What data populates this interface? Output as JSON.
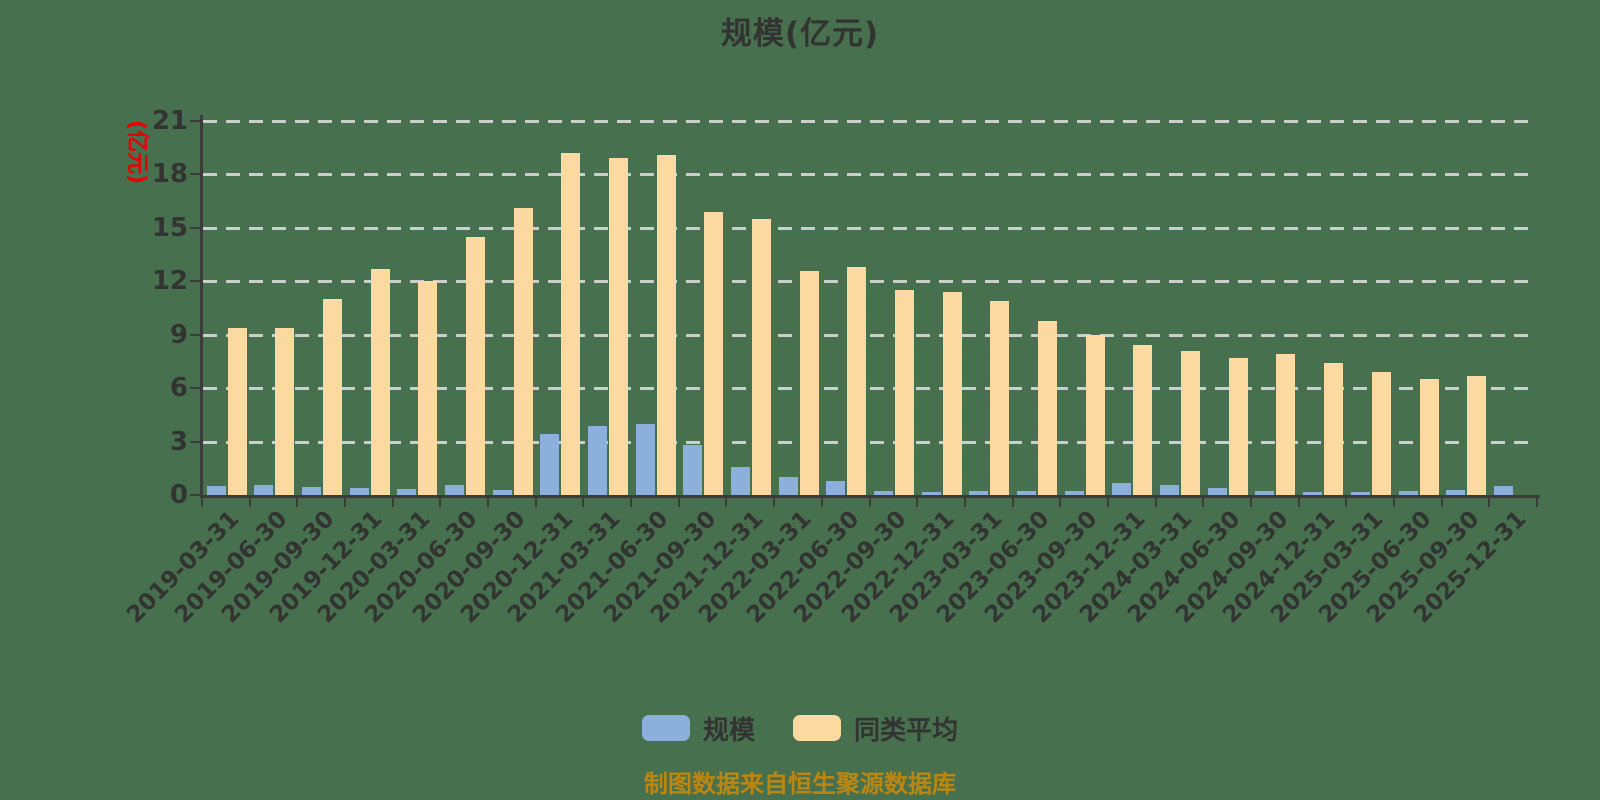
{
  "title": "规模(亿元)",
  "y_axis": {
    "unit_label": "(亿元)",
    "tick_labels": [
      "0",
      "3",
      "6",
      "9",
      "12",
      "15",
      "18",
      "21"
    ],
    "max": 21
  },
  "footer": {
    "text": "制图数据来自恒生聚源数据库"
  },
  "colors": {
    "background": "#47704E",
    "axis": "#3b3b3b",
    "gridline": "#cdcdcd",
    "title_text": "#333333",
    "unit_label_red": "#e60000",
    "footer_gold": "#bd860e",
    "series_blue": "#8dafdc",
    "series_yellow": "#fcd9a0"
  },
  "chart_data": {
    "type": "bar",
    "title": "规模(亿元)",
    "ylabel": "(亿元)",
    "ylim": [
      0,
      21
    ],
    "ytick_step": 3,
    "grid": true,
    "legend_position": "bottom",
    "categories": [
      "2019-03-31",
      "2019-06-30",
      "2019-09-30",
      "2019-12-31",
      "2020-03-31",
      "2020-06-30",
      "2020-09-30",
      "2020-12-31",
      "2021-03-31",
      "2021-06-30",
      "2021-09-30",
      "2021-12-31",
      "2022-03-31",
      "2022-06-30",
      "2022-09-30",
      "2022-12-31",
      "2023-03-31",
      "2023-06-30",
      "2023-09-30",
      "2023-12-31",
      "2024-03-31",
      "2024-06-30",
      "2024-09-30",
      "2024-12-31",
      "2025-03-31",
      "2025-06-30",
      "2025-09-30",
      "2025-12-31"
    ],
    "series": [
      {
        "name": "规模",
        "color": "#8dafdc",
        "values": [
          0.5,
          0.55,
          0.45,
          0.4,
          0.35,
          0.55,
          0.3,
          3.45,
          3.85,
          4.0,
          2.8,
          1.55,
          1.0,
          0.8,
          0.2,
          0.15,
          0.2,
          0.2,
          0.2,
          0.65,
          0.55,
          0.4,
          0.2,
          0.15,
          0.15,
          0.2,
          0.3,
          0.5
        ]
      },
      {
        "name": "同类平均",
        "color": "#fcd9a0",
        "values": [
          9.4,
          9.4,
          11.0,
          12.7,
          12.0,
          14.5,
          16.1,
          19.2,
          18.9,
          19.1,
          15.9,
          15.5,
          12.6,
          12.8,
          11.5,
          11.4,
          10.9,
          9.8,
          9.0,
          8.4,
          8.1,
          7.7,
          7.9,
          7.4,
          6.9,
          6.5,
          6.7,
          0
        ]
      }
    ]
  }
}
